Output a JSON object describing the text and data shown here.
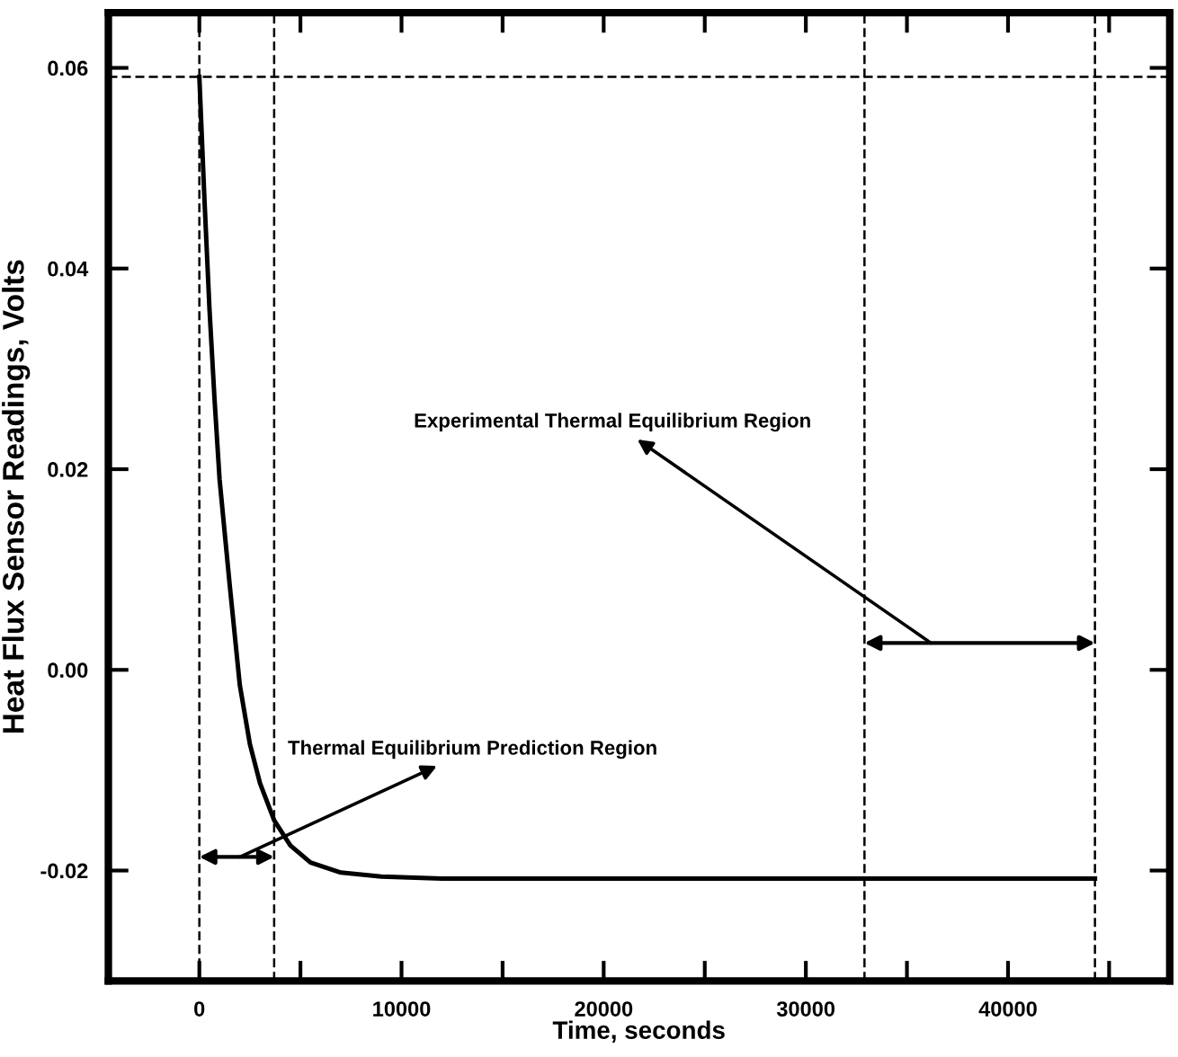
{
  "chart_data": {
    "type": "line",
    "xlabel": "Time, seconds",
    "ylabel": "Heat Flux Sensor Readings, Volts",
    "x": [
      0,
      250,
      500,
      750,
      1000,
      1500,
      2000,
      2500,
      3000,
      3700,
      4500,
      5500,
      7000,
      9000,
      12000,
      20000,
      30000,
      44300
    ],
    "series": [
      {
        "color": "#000000",
        "values": [
          0.0591,
          0.047,
          0.036,
          0.027,
          0.019,
          0.0085,
          -0.0015,
          -0.0074,
          -0.0113,
          -0.015,
          -0.0175,
          -0.0192,
          -0.0202,
          -0.0206,
          -0.0208,
          -0.0208,
          -0.0208,
          -0.0208
        ]
      }
    ],
    "xlim": [
      -4500,
      48000
    ],
    "ylim": [
      -0.031,
      0.0655
    ],
    "xticks": [
      0,
      {
        "value": 5000,
        "label": null
      },
      10000,
      {
        "value": 15000,
        "label": null
      },
      20000,
      {
        "value": 25000,
        "label": null
      },
      30000,
      {
        "value": 35000,
        "label": null
      },
      40000,
      {
        "value": 45000,
        "label": null
      }
    ],
    "yticks": [
      -0.02,
      {
        "value": 0,
        "label": "0.00"
      },
      0.02,
      0.04,
      0.06
    ],
    "ref_lines": [
      {
        "axis": "x",
        "value": 0,
        "line_style": "dashed",
        "color": "#000000"
      },
      {
        "axis": "x",
        "value": 3700,
        "line_style": "dashed",
        "color": "#000000"
      },
      {
        "axis": "x",
        "value": 32900,
        "line_style": "dashed",
        "color": "#000000"
      },
      {
        "axis": "x",
        "value": 44300,
        "line_style": "dashed",
        "color": "#000000"
      },
      {
        "axis": "y",
        "value": 0.0591,
        "line_style": "dashed",
        "color": "#000000"
      }
    ],
    "annotations": [
      "Thermal Equilibrium Prediction Region",
      "Experimental Thermal Equilibrium Region"
    ],
    "grid": false,
    "marker": "none",
    "line_style": "solid",
    "legend": false
  }
}
